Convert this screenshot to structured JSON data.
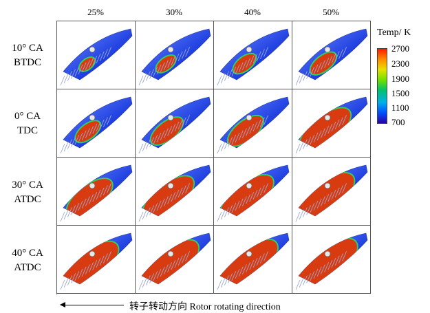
{
  "columns": [
    "25%",
    "30%",
    "40%",
    "50%"
  ],
  "rows": [
    {
      "line1": "10° CA",
      "line2": "BTDC",
      "flame": [
        0.1,
        0.18,
        0.24,
        0.3
      ]
    },
    {
      "line1": "0° CA",
      "line2": "TDC",
      "flame": [
        0.28,
        0.42,
        0.48,
        0.78
      ]
    },
    {
      "line1": "30° CA",
      "line2": "ATDC",
      "flame": [
        0.68,
        0.78,
        0.82,
        0.9
      ]
    },
    {
      "line1": "40° CA",
      "line2": "ATDC",
      "flame": [
        0.88,
        0.94,
        0.96,
        1.0
      ]
    }
  ],
  "legend": {
    "title": "Temp/ K",
    "ticks": [
      "2700",
      "2300",
      "1900",
      "1500",
      "1100",
      "700"
    ],
    "colors": {
      "low": "#2b00a8",
      "mid": "#00c070",
      "high": "#ff1a00"
    }
  },
  "direction_label": "转子转动方向 Rotor rotating direction"
}
